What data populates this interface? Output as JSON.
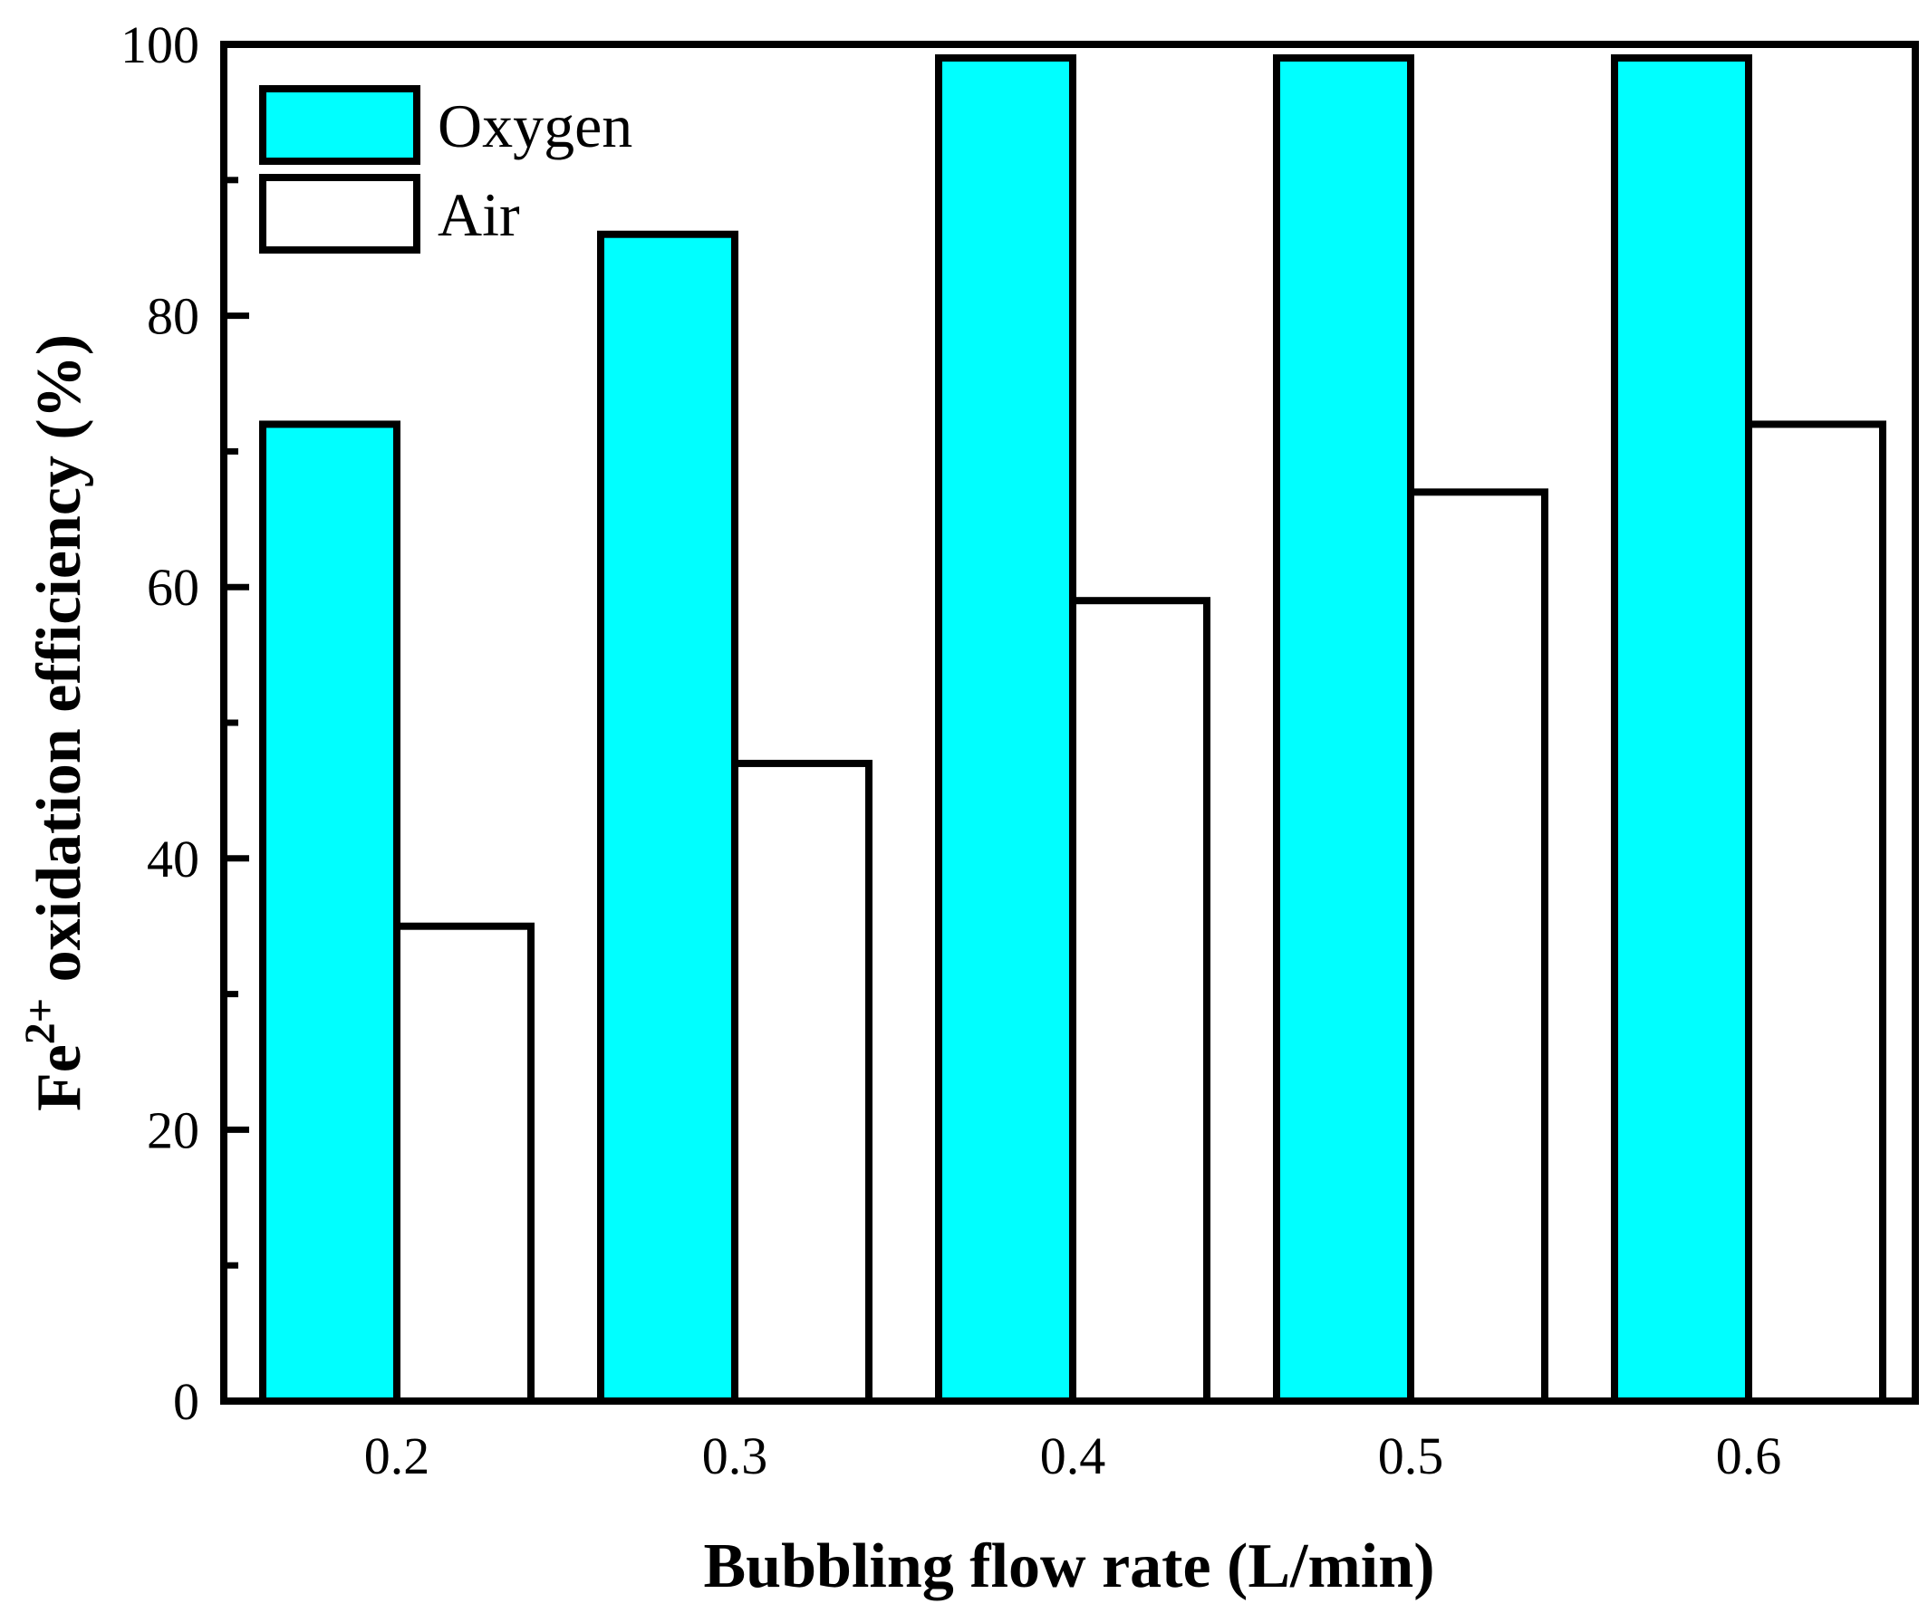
{
  "chart_data": {
    "type": "bar",
    "categories": [
      "0.2",
      "0.3",
      "0.4",
      "0.5",
      "0.6"
    ],
    "series": [
      {
        "name": "Oxygen",
        "values": [
          72,
          86,
          99,
          99,
          99
        ],
        "color": "#00FFFF"
      },
      {
        "name": "Air",
        "values": [
          35,
          47,
          59,
          67,
          72
        ],
        "color": "#FFFFFF"
      }
    ],
    "title": "",
    "xlabel": "Bubbling flow rate (L/min)",
    "ylabel": {
      "prefix": "Fe",
      "superscript": "2+",
      "suffix": " oxidation efficiency (%)"
    },
    "ylim": [
      0,
      100
    ],
    "y_major_ticks": [
      0,
      20,
      40,
      60,
      80,
      100
    ],
    "y_minor_ticks": [
      10,
      30,
      50,
      70,
      90
    ],
    "tick_label_texts": [
      "0",
      "20",
      "40",
      "60",
      "80",
      "100"
    ],
    "legend_position": "top-left",
    "grid": false,
    "edge_color": "#000000"
  }
}
